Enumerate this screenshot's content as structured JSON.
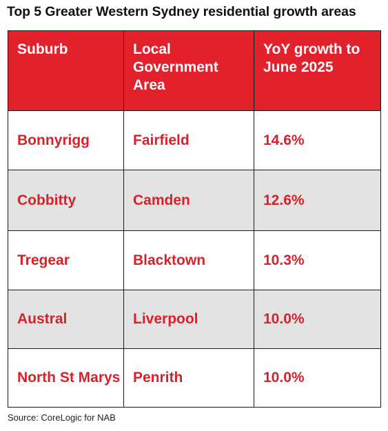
{
  "title": "Top 5 Greater Western Sydney residential growth areas",
  "table": {
    "headers": [
      "Suburb",
      "Local Government Area",
      "YoY growth to June 2025"
    ],
    "rows": [
      [
        "Bonnyrigg",
        "Fairfield",
        "14.6%"
      ],
      [
        "Cobbitty",
        "Camden",
        "12.6%"
      ],
      [
        "Tregear",
        "Blacktown",
        "10.3%"
      ],
      [
        "Austral",
        "Liverpool",
        "10.0%"
      ],
      [
        "North St Marys",
        "Penrith",
        "10.0%"
      ]
    ]
  },
  "source": "Source: CoreLogic for NAB",
  "colors": {
    "header_bg": "#e3212d",
    "accent_text": "#d9202b",
    "stripe_bg": "#e3e3e3"
  }
}
